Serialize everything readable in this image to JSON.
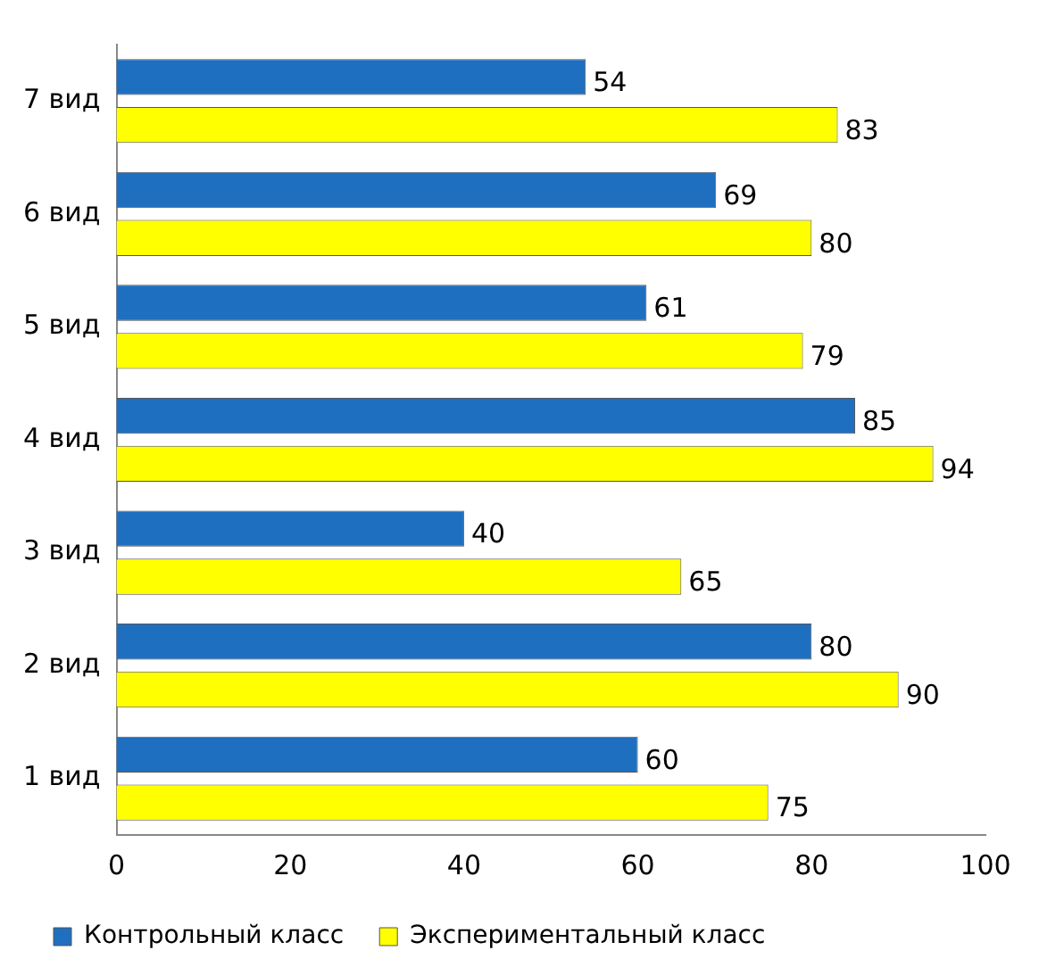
{
  "chart_data": {
    "type": "bar",
    "orientation": "horizontal",
    "categories": [
      "7 вид",
      "6 вид",
      "5 вид",
      "4 вид",
      "3 вид",
      "2 вид",
      "1 вид"
    ],
    "series": [
      {
        "name": "Контрольный класс",
        "color": "#1f6fc0",
        "values": [
          54,
          69,
          61,
          85,
          40,
          80,
          60
        ]
      },
      {
        "name": "Экспериментальный класс",
        "color": "#ffff00",
        "values": [
          83,
          80,
          79,
          94,
          65,
          90,
          75
        ]
      }
    ],
    "xlim": [
      0,
      100
    ],
    "xticks": [
      0,
      20,
      40,
      60,
      80,
      100
    ],
    "grid": false,
    "legend": "bottom",
    "data_labels": true
  }
}
